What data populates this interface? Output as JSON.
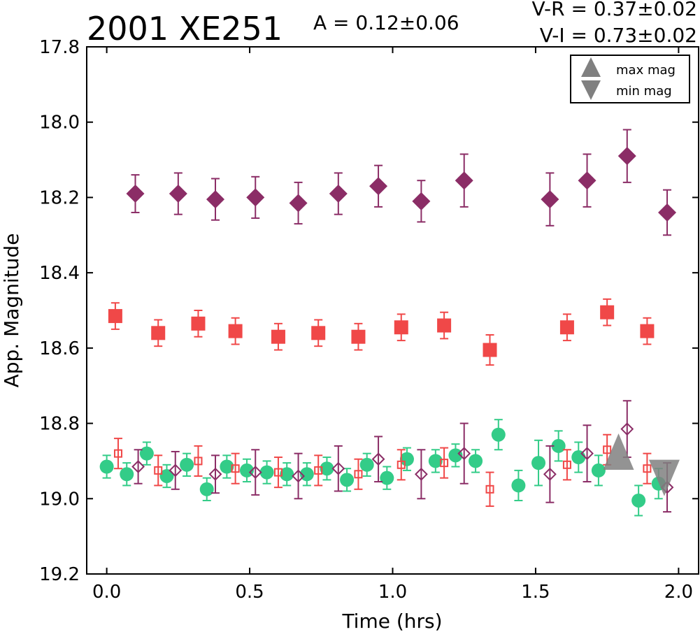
{
  "chart_data": {
    "type": "scatter",
    "title": "2001 XE251",
    "amplitude_label": "A  = 0.12±0.06",
    "color_labels": [
      "V-R = 0.37±0.02",
      "V-I  = 0.73±0.02"
    ],
    "xlabel": "Time (hrs)",
    "ylabel": "App. Magnitude",
    "xlim": [
      -0.07,
      2.07
    ],
    "ylim": [
      19.2,
      17.8
    ],
    "y_inverted": true,
    "grid": false,
    "legend_position": "top-right",
    "x_ticks": [
      "0.0",
      "0.5",
      "1.0",
      "1.5",
      "2.0"
    ],
    "y_ticks": [
      "17.8",
      "18.0",
      "18.2",
      "18.4",
      "18.6",
      "18.8",
      "19.0",
      "19.2"
    ],
    "legend": [
      {
        "marker": "triangle-up",
        "label": "max mag",
        "color": "#808080"
      },
      {
        "marker": "triangle-down",
        "label": "min mag",
        "color": "#808080"
      }
    ],
    "series": [
      {
        "marker": "diamond-filled",
        "color": "#8b2d66",
        "points": [
          {
            "x": 0.1,
            "y": 18.19,
            "err": 0.05
          },
          {
            "x": 0.25,
            "y": 18.19,
            "err": 0.055
          },
          {
            "x": 0.38,
            "y": 18.205,
            "err": 0.055
          },
          {
            "x": 0.52,
            "y": 18.2,
            "err": 0.055
          },
          {
            "x": 0.67,
            "y": 18.215,
            "err": 0.055
          },
          {
            "x": 0.81,
            "y": 18.19,
            "err": 0.055
          },
          {
            "x": 0.95,
            "y": 18.17,
            "err": 0.055
          },
          {
            "x": 1.1,
            "y": 18.21,
            "err": 0.055
          },
          {
            "x": 1.25,
            "y": 18.155,
            "err": 0.07
          },
          {
            "x": 1.55,
            "y": 18.205,
            "err": 0.07
          },
          {
            "x": 1.68,
            "y": 18.155,
            "err": 0.07
          },
          {
            "x": 1.82,
            "y": 18.09,
            "err": 0.07
          },
          {
            "x": 1.96,
            "y": 18.24,
            "err": 0.06
          }
        ]
      },
      {
        "marker": "square-filled",
        "color": "#f04848",
        "points": [
          {
            "x": 0.03,
            "y": 18.515,
            "err": 0.035
          },
          {
            "x": 0.18,
            "y": 18.56,
            "err": 0.035
          },
          {
            "x": 0.32,
            "y": 18.535,
            "err": 0.035
          },
          {
            "x": 0.45,
            "y": 18.555,
            "err": 0.035
          },
          {
            "x": 0.6,
            "y": 18.57,
            "err": 0.035
          },
          {
            "x": 0.74,
            "y": 18.56,
            "err": 0.035
          },
          {
            "x": 0.88,
            "y": 18.57,
            "err": 0.035
          },
          {
            "x": 1.03,
            "y": 18.545,
            "err": 0.035
          },
          {
            "x": 1.18,
            "y": 18.54,
            "err": 0.035
          },
          {
            "x": 1.34,
            "y": 18.605,
            "err": 0.04
          },
          {
            "x": 1.61,
            "y": 18.545,
            "err": 0.035
          },
          {
            "x": 1.75,
            "y": 18.505,
            "err": 0.035
          },
          {
            "x": 1.89,
            "y": 18.555,
            "err": 0.035
          }
        ]
      },
      {
        "marker": "circle-filled",
        "color": "#33cc88",
        "points": [
          {
            "x": 0.0,
            "y": 18.915,
            "err": 0.03
          },
          {
            "x": 0.07,
            "y": 18.935,
            "err": 0.03
          },
          {
            "x": 0.14,
            "y": 18.88,
            "err": 0.03
          },
          {
            "x": 0.21,
            "y": 18.94,
            "err": 0.03
          },
          {
            "x": 0.28,
            "y": 18.91,
            "err": 0.03
          },
          {
            "x": 0.35,
            "y": 18.975,
            "err": 0.03
          },
          {
            "x": 0.42,
            "y": 18.915,
            "err": 0.03
          },
          {
            "x": 0.49,
            "y": 18.925,
            "err": 0.03
          },
          {
            "x": 0.56,
            "y": 18.93,
            "err": 0.03
          },
          {
            "x": 0.63,
            "y": 18.935,
            "err": 0.03
          },
          {
            "x": 0.7,
            "y": 18.935,
            "err": 0.03
          },
          {
            "x": 0.77,
            "y": 18.92,
            "err": 0.03
          },
          {
            "x": 0.84,
            "y": 18.95,
            "err": 0.03
          },
          {
            "x": 0.91,
            "y": 18.91,
            "err": 0.03
          },
          {
            "x": 0.98,
            "y": 18.945,
            "err": 0.03
          },
          {
            "x": 1.05,
            "y": 18.895,
            "err": 0.03
          },
          {
            "x": 1.15,
            "y": 18.9,
            "err": 0.03
          },
          {
            "x": 1.22,
            "y": 18.885,
            "err": 0.03
          },
          {
            "x": 1.29,
            "y": 18.9,
            "err": 0.03
          },
          {
            "x": 1.37,
            "y": 18.83,
            "err": 0.04
          },
          {
            "x": 1.44,
            "y": 18.965,
            "err": 0.04
          },
          {
            "x": 1.51,
            "y": 18.905,
            "err": 0.06
          },
          {
            "x": 1.58,
            "y": 18.86,
            "err": 0.04
          },
          {
            "x": 1.65,
            "y": 18.89,
            "err": 0.04
          },
          {
            "x": 1.72,
            "y": 18.925,
            "err": 0.04
          },
          {
            "x": 1.86,
            "y": 19.005,
            "err": 0.04
          },
          {
            "x": 1.93,
            "y": 18.96,
            "err": 0.04
          }
        ]
      },
      {
        "marker": "square-open",
        "color": "#f04848",
        "points": [
          {
            "x": 0.04,
            "y": 18.88,
            "err": 0.04
          },
          {
            "x": 0.18,
            "y": 18.925,
            "err": 0.04
          },
          {
            "x": 0.32,
            "y": 18.9,
            "err": 0.04
          },
          {
            "x": 0.45,
            "y": 18.92,
            "err": 0.04
          },
          {
            "x": 0.6,
            "y": 18.93,
            "err": 0.04
          },
          {
            "x": 0.74,
            "y": 18.925,
            "err": 0.04
          },
          {
            "x": 0.88,
            "y": 18.935,
            "err": 0.04
          },
          {
            "x": 1.03,
            "y": 18.91,
            "err": 0.04
          },
          {
            "x": 1.18,
            "y": 18.905,
            "err": 0.04
          },
          {
            "x": 1.34,
            "y": 18.975,
            "err": 0.045
          },
          {
            "x": 1.61,
            "y": 18.91,
            "err": 0.04
          },
          {
            "x": 1.75,
            "y": 18.87,
            "err": 0.04
          },
          {
            "x": 1.89,
            "y": 18.92,
            "err": 0.04
          }
        ]
      },
      {
        "marker": "diamond-open",
        "color": "#8b2d66",
        "points": [
          {
            "x": 0.11,
            "y": 18.915,
            "err": 0.045
          },
          {
            "x": 0.24,
            "y": 18.925,
            "err": 0.05
          },
          {
            "x": 0.38,
            "y": 18.935,
            "err": 0.05
          },
          {
            "x": 0.52,
            "y": 18.93,
            "err": 0.06
          },
          {
            "x": 0.67,
            "y": 18.94,
            "err": 0.06
          },
          {
            "x": 0.81,
            "y": 18.92,
            "err": 0.06
          },
          {
            "x": 0.95,
            "y": 18.895,
            "err": 0.06
          },
          {
            "x": 1.1,
            "y": 18.935,
            "err": 0.065
          },
          {
            "x": 1.25,
            "y": 18.88,
            "err": 0.08
          },
          {
            "x": 1.55,
            "y": 18.935,
            "err": 0.075
          },
          {
            "x": 1.68,
            "y": 18.88,
            "err": 0.075
          },
          {
            "x": 1.82,
            "y": 18.815,
            "err": 0.075
          },
          {
            "x": 1.96,
            "y": 18.97,
            "err": 0.065
          }
        ]
      }
    ],
    "extrema_markers": [
      {
        "type": "max",
        "marker": "triangle-up",
        "x": 1.79,
        "y": 18.875,
        "color": "#808080"
      },
      {
        "type": "min",
        "marker": "triangle-down",
        "x": 1.95,
        "y": 18.945,
        "color": "#808080"
      }
    ]
  }
}
